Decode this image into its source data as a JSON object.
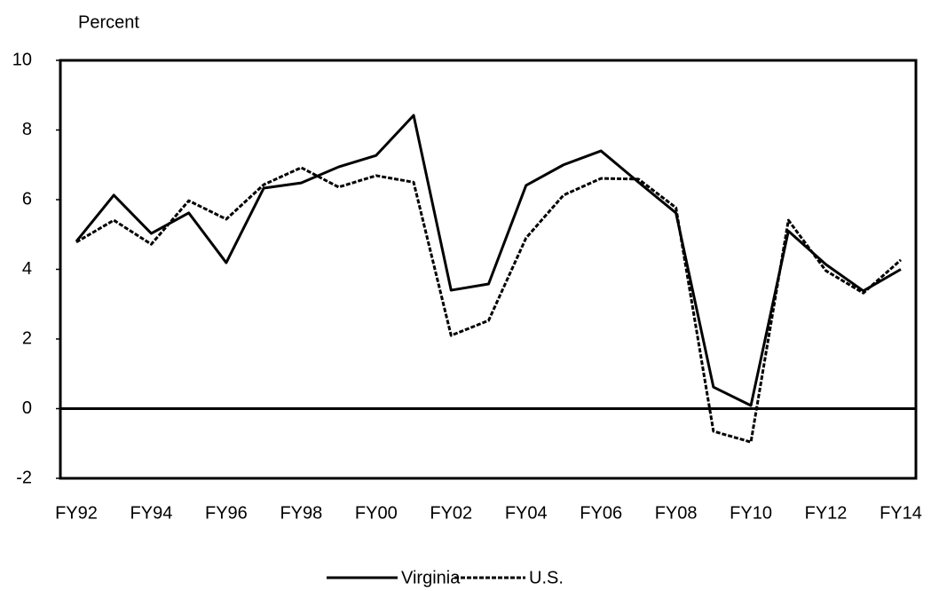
{
  "chart_data": {
    "type": "line",
    "y_label": "Percent",
    "categories": [
      "FY92",
      null,
      "FY94",
      null,
      "FY96",
      null,
      "FY98",
      null,
      "FY00",
      null,
      "FY02",
      null,
      "FY04",
      null,
      "FY06",
      null,
      "FY08",
      null,
      "FY10",
      null,
      "FY12",
      null,
      "FY14"
    ],
    "series": [
      {
        "name": "Virginia",
        "color": "#000000",
        "dash": false,
        "values": [
          4.8,
          6.13,
          5.03,
          5.62,
          4.19,
          6.33,
          6.48,
          6.94,
          7.27,
          8.42,
          3.4,
          3.58,
          6.41,
          7.0,
          7.4,
          6.5,
          5.62,
          0.62,
          0.09,
          5.1,
          4.14,
          3.38,
          4.0
        ]
      },
      {
        "name": "U.S.",
        "color": "#000000",
        "dash": true,
        "values": [
          4.78,
          5.41,
          4.72,
          5.97,
          5.44,
          6.43,
          6.92,
          6.36,
          6.69,
          6.5,
          2.1,
          2.53,
          4.9,
          6.13,
          6.61,
          6.59,
          5.77,
          -0.65,
          -0.96,
          5.41,
          3.96,
          3.32,
          4.27
        ]
      }
    ],
    "ylim": [
      -2,
      10
    ],
    "yticks": [
      -2,
      0,
      2,
      4,
      6,
      8,
      10
    ],
    "grid": false,
    "legend": "bottom"
  }
}
